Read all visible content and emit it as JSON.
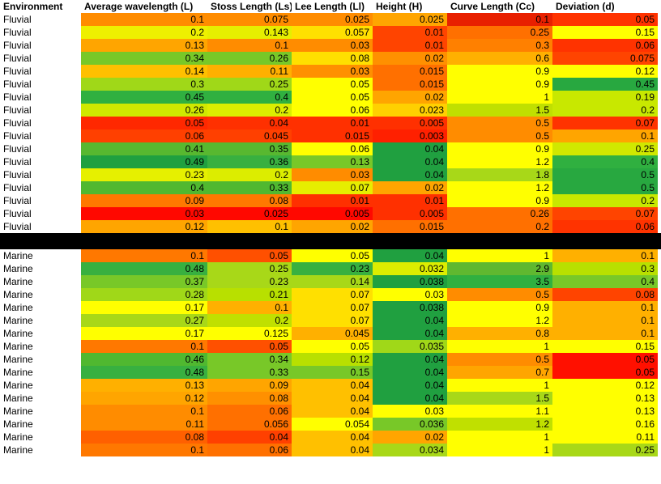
{
  "header": [
    "Environment",
    "Average wavelength (L)",
    "Stoss Length (Ls)",
    "Lee Length (Ll)",
    "Height (H)",
    "Curve Length (Cc)",
    "Deviation (d)"
  ],
  "fluvial": [
    [
      "Fluvial",
      "0.1",
      "0.075",
      "0.025",
      "0.025",
      "0.1",
      "0.05"
    ],
    [
      "Fluvial",
      "0.2",
      "0.143",
      "0.057",
      "0.01",
      "0.25",
      "0.15"
    ],
    [
      "Fluvial",
      "0.13",
      "0.1",
      "0.03",
      "0.01",
      "0.3",
      "0.06"
    ],
    [
      "Fluvial",
      "0.34",
      "0.26",
      "0.08",
      "0.02",
      "0.6",
      "0.075"
    ],
    [
      "Fluvial",
      "0.14",
      "0.11",
      "0.03",
      "0.015",
      "0.9",
      "0.12"
    ],
    [
      "Fluvial",
      "0.3",
      "0.25",
      "0.05",
      "0.015",
      "0.9",
      "0.45"
    ],
    [
      "Fluvial",
      "0.45",
      "0.4",
      "0.05",
      "0.02",
      "1",
      "0.19"
    ],
    [
      "Fluvial",
      "0.26",
      "0.2",
      "0.06",
      "0.023",
      "1.5",
      "0.2"
    ],
    [
      "Fluvial",
      "0.05",
      "0.04",
      "0.01",
      "0.005",
      "0.5",
      "0.07"
    ],
    [
      "Fluvial",
      "0.06",
      "0.045",
      "0.015",
      "0.003",
      "0.5",
      "0.1"
    ],
    [
      "Fluvial",
      "0.41",
      "0.35",
      "0.06",
      "0.04",
      "0.9",
      "0.25"
    ],
    [
      "Fluvial",
      "0.49",
      "0.36",
      "0.13",
      "0.04",
      "1.2",
      "0.4"
    ],
    [
      "Fluvial",
      "0.23",
      "0.2",
      "0.03",
      "0.04",
      "1.8",
      "0.5"
    ],
    [
      "Fluvial",
      "0.4",
      "0.33",
      "0.07",
      "0.02",
      "1.2",
      "0.5"
    ],
    [
      "Fluvial",
      "0.09",
      "0.08",
      "0.01",
      "0.01",
      "0.9",
      "0.2"
    ],
    [
      "Fluvial",
      "0.03",
      "0.025",
      "0.005",
      "0.005",
      "0.26",
      "0.07"
    ],
    [
      "Fluvial",
      "0.12",
      "0.1",
      "0.02",
      "0.015",
      "0.2",
      "0.06"
    ]
  ],
  "fluvial_colors": [
    [
      "#ff8c00",
      "#ff8c00",
      "#ff8c00",
      "#ffa500",
      "#e82000",
      "#ff3300"
    ],
    [
      "#eef000",
      "#e6ee00",
      "#ffe000",
      "#ff4400",
      "#ff7000",
      "#ffff00"
    ],
    [
      "#ffa500",
      "#ff8c00",
      "#ff8c00",
      "#ff4400",
      "#ff8000",
      "#ff3300"
    ],
    [
      "#78c828",
      "#78c828",
      "#ffe000",
      "#ff9000",
      "#ffb000",
      "#ff4400"
    ],
    [
      "#ffc000",
      "#ffb000",
      "#ff9000",
      "#ff7000",
      "#ffff00",
      "#ffff00"
    ],
    [
      "#a0d818",
      "#a0d818",
      "#ffff00",
      "#ff7000",
      "#ffff00",
      "#28a840"
    ],
    [
      "#30b040",
      "#30b040",
      "#ffff00",
      "#ffa500",
      "#ffff00",
      "#c8e800"
    ],
    [
      "#d0e800",
      "#dced00",
      "#ffff00",
      "#ffd000",
      "#c0e000",
      "#c8e800"
    ],
    [
      "#ff2800",
      "#ff3000",
      "#ff3000",
      "#ff3000",
      "#ff8c00",
      "#ff3300"
    ],
    [
      "#ff4000",
      "#ff4000",
      "#ff3000",
      "#ff2000",
      "#ff8c00",
      "#ffa500"
    ],
    [
      "#58b830",
      "#58b830",
      "#ffff00",
      "#20a040",
      "#ffff00",
      "#d0e800"
    ],
    [
      "#20a040",
      "#38b040",
      "#78c828",
      "#20a040",
      "#ffff00",
      "#30b040"
    ],
    [
      "#e6f000",
      "#dced00",
      "#ff8c00",
      "#20a040",
      "#a8d818",
      "#28a840"
    ],
    [
      "#50b830",
      "#50b830",
      "#e6ee00",
      "#ffa500",
      "#ffff00",
      "#28a840"
    ],
    [
      "#ff7800",
      "#ff7800",
      "#ff3000",
      "#ff3000",
      "#ffff00",
      "#c8e800"
    ],
    [
      "#ff0800",
      "#ff0800",
      "#ff0800",
      "#ff3000",
      "#ff7000",
      "#ff4400"
    ],
    [
      "#ffa500",
      "#ffc000",
      "#ffa500",
      "#ff7000",
      "#ff7000",
      "#ff3300"
    ]
  ],
  "marine": [
    [
      "Marine",
      "0.1",
      "0.05",
      "0.05",
      "0.04",
      "1",
      "0.1"
    ],
    [
      "Marine",
      "0.48",
      "0.25",
      "0.23",
      "0.032",
      "2.9",
      "0.3"
    ],
    [
      "Marine",
      "0.37",
      "0.23",
      "0.14",
      "0.038",
      "3.5",
      "0.4"
    ],
    [
      "Marine",
      "0.28",
      "0.21",
      "0.07",
      "0.03",
      "0.5",
      "0.08"
    ],
    [
      "Marine",
      "0.17",
      "0.1",
      "0.07",
      "0.038",
      "0.9",
      "0.1"
    ],
    [
      "Marine",
      "0.27",
      "0.2",
      "0.07",
      "0.04",
      "1.2",
      "0.1"
    ],
    [
      "Marine",
      "0.17",
      "0.125",
      "0.045",
      "0.04",
      "0.8",
      "0.1"
    ],
    [
      "Marine",
      "0.1",
      "0.05",
      "0.05",
      "0.035",
      "1",
      "0.15"
    ],
    [
      "Marine",
      "0.46",
      "0.34",
      "0.12",
      "0.04",
      "0.5",
      "0.05"
    ],
    [
      "Marine",
      "0.48",
      "0.33",
      "0.15",
      "0.04",
      "0.7",
      "0.05"
    ],
    [
      "Marine",
      "0.13",
      "0.09",
      "0.04",
      "0.04",
      "1",
      "0.12"
    ],
    [
      "Marine",
      "0.12",
      "0.08",
      "0.04",
      "0.04",
      "1.5",
      "0.13"
    ],
    [
      "Marine",
      "0.1",
      "0.06",
      "0.04",
      "0.03",
      "1.1",
      "0.13"
    ],
    [
      "Marine",
      "0.11",
      "0.056",
      "0.054",
      "0.036",
      "1.2",
      "0.16"
    ],
    [
      "Marine",
      "0.08",
      "0.04",
      "0.04",
      "0.02",
      "1",
      "0.11"
    ],
    [
      "Marine",
      "0.1",
      "0.06",
      "0.04",
      "0.034",
      "1",
      "0.25"
    ]
  ],
  "marine_colors": [
    [
      "#ff7800",
      "#ff5000",
      "#ffff00",
      "#20a040",
      "#ffff00",
      "#ffb000"
    ],
    [
      "#38b040",
      "#a8d818",
      "#38b040",
      "#dced00",
      "#60b830",
      "#b8e000"
    ],
    [
      "#78c828",
      "#a8d818",
      "#a8d818",
      "#20a040",
      "#30b040",
      "#78c828"
    ],
    [
      "#a0d818",
      "#b8e000",
      "#ffe000",
      "#ffff00",
      "#ff8c00",
      "#ff4400"
    ],
    [
      "#ffff00",
      "#ffb000",
      "#ffe000",
      "#20a040",
      "#ffff00",
      "#ffb000"
    ],
    [
      "#a8d818",
      "#c0e000",
      "#ffe000",
      "#20a040",
      "#ffff00",
      "#ffb000"
    ],
    [
      "#ffff00",
      "#ffff00",
      "#ffb000",
      "#20a040",
      "#ffb000",
      "#ffb000"
    ],
    [
      "#ff7800",
      "#ff5000",
      "#ffff00",
      "#a0d818",
      "#ffff00",
      "#ffff00"
    ],
    [
      "#50b830",
      "#78c828",
      "#b8e000",
      "#20a040",
      "#ff8c00",
      "#ff1000"
    ],
    [
      "#38b040",
      "#78c828",
      "#78c828",
      "#20a040",
      "#ffa500",
      "#ff1000"
    ],
    [
      "#ffb000",
      "#ffa500",
      "#ffc000",
      "#20a040",
      "#ffff00",
      "#ffff00"
    ],
    [
      "#ffa500",
      "#ff9000",
      "#ffc000",
      "#20a040",
      "#a8d818",
      "#ffff00"
    ],
    [
      "#ff8c00",
      "#ff7000",
      "#ffc000",
      "#ffff00",
      "#ffff00",
      "#ffff00"
    ],
    [
      "#ff8c00",
      "#ff7000",
      "#ffff00",
      "#78c828",
      "#c0e000",
      "#ffff00"
    ],
    [
      "#ff6000",
      "#ff4000",
      "#ffc000",
      "#ffa500",
      "#ffff00",
      "#ffff00"
    ],
    [
      "#ff7800",
      "#ff7000",
      "#ffc000",
      "#a8d818",
      "#ffff00",
      "#a8d818"
    ]
  ]
}
